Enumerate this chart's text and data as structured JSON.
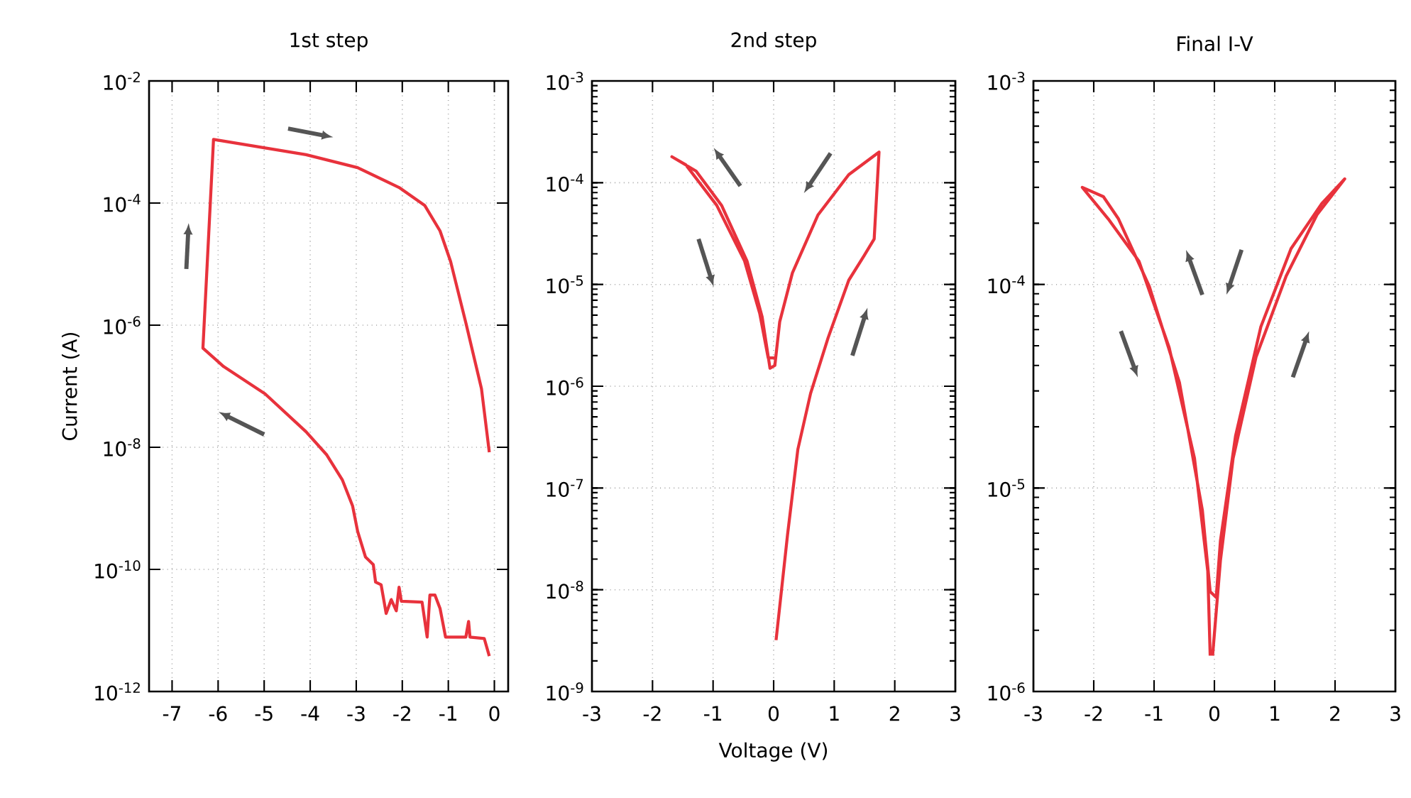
{
  "chart_data": [
    {
      "type": "line",
      "title": "1st step",
      "ylabel": "Current (A)",
      "log": "y",
      "grid": true,
      "marker": "none",
      "line_style": "solid",
      "xlim": [
        -7.5,
        0.3
      ],
      "xticks": [
        -7,
        -6,
        -5,
        -4,
        -3,
        -2,
        -1,
        0
      ],
      "ylim": [
        1e-12,
        0.01
      ],
      "yticks": [
        {
          "value": 1e-12,
          "label": "10$^{-12}$"
        },
        {
          "value": 1e-10,
          "label": "10$^{-10}$"
        },
        {
          "value": 1e-08,
          "label": "10$^{-8}$"
        },
        {
          "value": 1e-06,
          "label": "10$^{-6}$"
        },
        {
          "value": 0.0001,
          "label": "10$^{-4}$"
        },
        {
          "value": 0.01,
          "label": "10$^{-2}$"
        }
      ],
      "series": [
        {
          "color": "#e8323c",
          "x": [
            -0.11,
            -0.22,
            -0.53,
            -0.56,
            -0.62,
            -1.06,
            -1.18,
            -1.29,
            -1.4,
            -1.46,
            -1.57,
            -2.02,
            -2.07,
            -2.13,
            -2.24,
            -2.35,
            -2.46,
            -2.58,
            -2.63,
            -2.8,
            -2.97,
            -3.08,
            -3.3,
            -3.64,
            -4.09,
            -4.98,
            -5.88,
            -6.33,
            -6.1,
            -4.09,
            -2.97,
            -2.07,
            -1.51,
            -1.18,
            -0.95,
            -0.62,
            -0.28,
            -0.11
          ],
          "values": [
            3.8e-12,
            7.4e-12,
            7.8e-12,
            1.4e-11,
            7.8e-12,
            7.8e-12,
            2.3e-11,
            3.8e-11,
            3.8e-11,
            7.8e-12,
            2.9e-11,
            3e-11,
            5.1e-11,
            2.1e-11,
            3.2e-11,
            1.9e-11,
            5.6e-11,
            6.2e-11,
            1.2e-10,
            1.6e-10,
            4.2e-10,
            1.1e-09,
            2.9e-09,
            7.5e-09,
            1.8e-08,
            7.5e-08,
            2.1e-07,
            4.2e-07,
            0.0011,
            0.00062,
            0.00038,
            0.00018,
            9.1e-05,
            3.5e-05,
            1.1e-05,
            1.1e-06,
            9.1e-08,
            8.3e-09
          ]
        }
      ]
    },
    {
      "type": "line",
      "title": "2nd step",
      "xlabel": "Voltage (V)",
      "log": "y",
      "grid": true,
      "marker": "none",
      "line_style": "solid",
      "xlim": [
        -3,
        3
      ],
      "xticks": [
        -3,
        -2,
        -1,
        0,
        1,
        2,
        3
      ],
      "ylim": [
        1e-09,
        0.001
      ],
      "yticks": [
        {
          "value": 1e-09,
          "label": "10$^{-9}$"
        },
        {
          "value": 1e-08,
          "label": "10$^{-8}$"
        },
        {
          "value": 1e-07,
          "label": "10$^{-7}$"
        },
        {
          "value": 1e-06,
          "label": "10$^{-6}$"
        },
        {
          "value": 1e-05,
          "label": "10$^{-5}$"
        },
        {
          "value": 0.0001,
          "label": "10$^{-4}$"
        },
        {
          "value": 0.001,
          "label": "10$^{-3}$"
        }
      ],
      "series": [
        {
          "color": "#e8323c",
          "x": [
            0.04,
            0.23,
            0.4,
            0.61,
            0.9,
            1.24,
            1.49,
            1.66,
            1.74,
            1.24,
            0.73,
            0.31,
            0.1,
            0.02,
            -0.06,
            -0.19,
            -0.44,
            -0.86,
            -1.28,
            -1.68,
            -1.45,
            -0.94,
            -0.48,
            -0.23,
            -0.09,
            0.02
          ],
          "values": [
            3.2e-09,
            3.5e-08,
            2.4e-07,
            8.5e-07,
            3e-06,
            1.1e-05,
            1.9e-05,
            2.8e-05,
            0.0002,
            0.00012,
            4.8e-05,
            1.3e-05,
            4.3e-06,
            1.6e-06,
            1.5e-06,
            4.8e-06,
            1.7e-05,
            6e-05,
            0.00013,
            0.00018,
            0.00015,
            6e-05,
            1.7e-05,
            5.2e-06,
            1.9e-06,
            1.9e-06
          ]
        }
      ]
    },
    {
      "type": "line",
      "title": "Final I-V",
      "log": "y",
      "grid": true,
      "marker": "none",
      "line_style": "solid",
      "xlim": [
        -3,
        3
      ],
      "xticks": [
        -3,
        -2,
        -1,
        0,
        1,
        2,
        3
      ],
      "ylim": [
        1e-06,
        0.001
      ],
      "yticks": [
        {
          "value": 1e-06,
          "label": "10$^{-6}$"
        },
        {
          "value": 1e-05,
          "label": "10$^{-5}$"
        },
        {
          "value": 0.0001,
          "label": "10$^{-4}$"
        },
        {
          "value": 0.001,
          "label": "10$^{-3}$"
        }
      ],
      "series": [
        {
          "color": "#e8323c",
          "x": [
            -0.03,
            0.1,
            0.31,
            0.69,
            1.19,
            1.7,
            2.16,
            1.78,
            1.27,
            0.77,
            0.35,
            0.1,
            0.03,
            -0.07,
            -0.2,
            -0.58,
            -1.08,
            -1.59,
            -1.84,
            -2.19,
            -1.76,
            -1.25,
            -0.75,
            -0.33,
            -0.11,
            -0.07
          ],
          "values": [
            1.5e-06,
            4.4e-06,
            1.4e-05,
            4.4e-05,
            0.00011,
            0.00022,
            0.00033,
            0.00025,
            0.00015,
            6.2e-05,
            1.8e-05,
            5.5e-06,
            2.9e-06,
            3.1e-06,
            7.8e-06,
            3.3e-05,
            9.8e-05,
            0.00021,
            0.00027,
            0.0003,
            0.00021,
            0.00013,
            4.9e-05,
            1.4e-05,
            3.9e-06,
            1.5e-06
          ]
        }
      ]
    }
  ]
}
